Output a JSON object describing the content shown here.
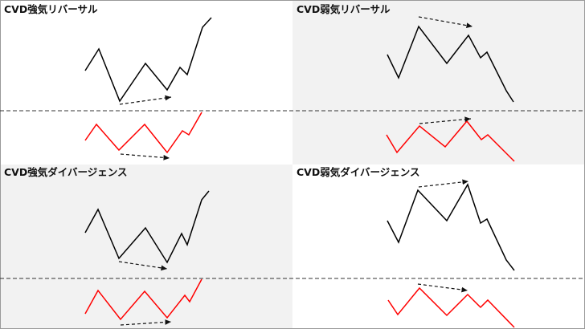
{
  "colors": {
    "frame": "#9a9a9a",
    "shade": "#f2f2f2",
    "divider": "#333333",
    "price_line": "#000000",
    "cvd_line": "#ff0000",
    "arrow": "#111111"
  },
  "panels": [
    {
      "id": "bullish-reversal",
      "title": "CVD強気リバーサル",
      "shaded": false,
      "icon": "dashed-trend-arrow-icon"
    },
    {
      "id": "bearish-reversal",
      "title": "CVD弱気リバーサル",
      "shaded": true,
      "icon": "dashed-trend-arrow-icon"
    },
    {
      "id": "bullish-divergence",
      "title": "CVD強気ダイバージェンス",
      "shaded": true,
      "icon": "dashed-trend-arrow-icon"
    },
    {
      "id": "bearish-divergence",
      "title": "CVD弱気ダイバージェンス",
      "shaded": false,
      "icon": "dashed-trend-arrow-icon"
    }
  ]
}
